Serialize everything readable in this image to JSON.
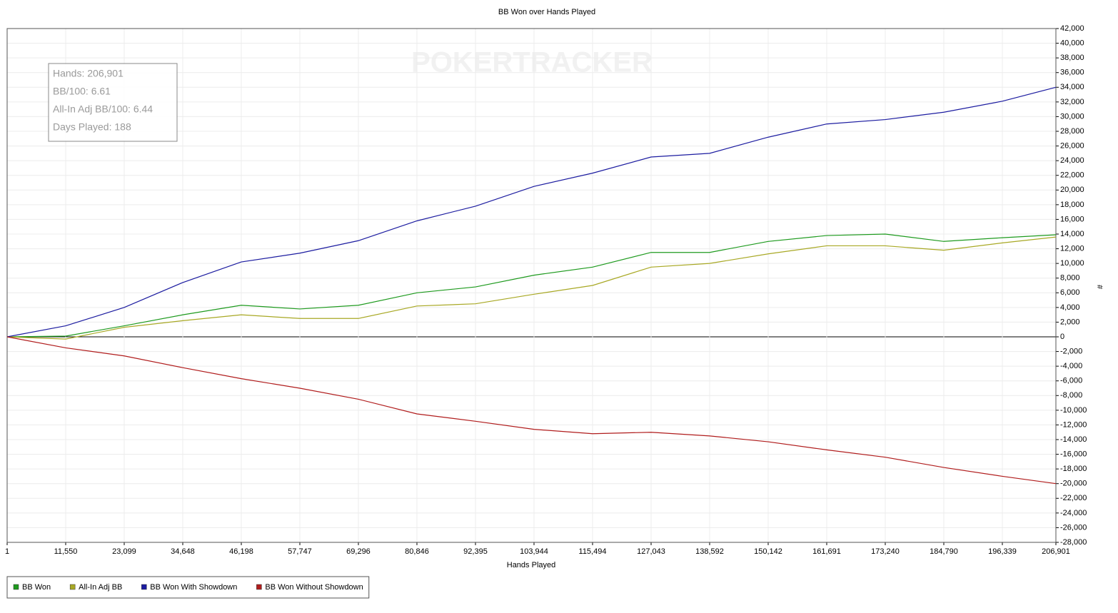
{
  "chart_data": {
    "type": "line",
    "title": "BB Won over Hands Played",
    "x_label": "Hands Played",
    "y_label": "#",
    "watermark": "POKERTRACKER",
    "stats": [
      "Hands: 206,901",
      "BB/100: 6.61",
      "All-In Adj BB/100: 6.44",
      "Days Played: 188"
    ],
    "grid": true,
    "legend": "bottom-left",
    "x": [
      1,
      11550,
      23099,
      34648,
      46198,
      57747,
      69296,
      80846,
      92395,
      103944,
      115494,
      127043,
      138592,
      150142,
      161691,
      173240,
      184790,
      196339,
      206901
    ],
    "xlim": [
      1,
      206901
    ],
    "xticks": [
      1,
      {
        "value": 11550,
        "label": "11,550"
      },
      {
        "value": 23099,
        "label": "23,099"
      },
      {
        "value": 34648,
        "label": "34,648"
      },
      {
        "value": 46198,
        "label": "46,198"
      },
      {
        "value": 57747,
        "label": "57,747"
      },
      {
        "value": 69296,
        "label": "69,296"
      },
      {
        "value": 80846,
        "label": "80,846"
      },
      {
        "value": 92395,
        "label": "92,395"
      },
      {
        "value": 103944,
        "label": "103,944"
      },
      {
        "value": 115494,
        "label": "115,494"
      },
      {
        "value": 127043,
        "label": "127,043"
      },
      {
        "value": 138592,
        "label": "138,592"
      },
      {
        "value": 150142,
        "label": "150,142"
      },
      {
        "value": 161691,
        "label": "161,691"
      },
      {
        "value": 173240,
        "label": "173,240"
      },
      {
        "value": 184790,
        "label": "184,790"
      },
      {
        "value": 196339,
        "label": "196,339"
      },
      {
        "value": 206901,
        "label": "206,901"
      }
    ],
    "ylim": [
      -28000,
      42000
    ],
    "yticks": [
      {
        "value": -28000,
        "label": "-28,000"
      },
      {
        "value": -26000,
        "label": "-26,000"
      },
      {
        "value": -24000,
        "label": "-24,000"
      },
      {
        "value": -22000,
        "label": "-22,000"
      },
      {
        "value": -20000,
        "label": "-20,000"
      },
      {
        "value": -18000,
        "label": "-18,000"
      },
      {
        "value": -16000,
        "label": "-16,000"
      },
      {
        "value": -14000,
        "label": "-14,000"
      },
      {
        "value": -12000,
        "label": "-12,000"
      },
      {
        "value": -10000,
        "label": "-10,000"
      },
      {
        "value": -8000,
        "label": "-8,000"
      },
      {
        "value": -6000,
        "label": "-6,000"
      },
      {
        "value": -4000,
        "label": "-4,000"
      },
      {
        "value": -2000,
        "label": "-2,000"
      },
      0,
      {
        "value": 2000,
        "label": "2,000"
      },
      {
        "value": 4000,
        "label": "4,000"
      },
      {
        "value": 6000,
        "label": "6,000"
      },
      {
        "value": 8000,
        "label": "8,000"
      },
      {
        "value": 10000,
        "label": "10,000"
      },
      {
        "value": 12000,
        "label": "12,000"
      },
      {
        "value": 14000,
        "label": "14,000"
      },
      {
        "value": 16000,
        "label": "16,000"
      },
      {
        "value": 18000,
        "label": "18,000"
      },
      {
        "value": 20000,
        "label": "20,000"
      },
      {
        "value": 22000,
        "label": "22,000"
      },
      {
        "value": 24000,
        "label": "24,000"
      },
      {
        "value": 26000,
        "label": "26,000"
      },
      {
        "value": 28000,
        "label": "28,000"
      },
      {
        "value": 30000,
        "label": "30,000"
      },
      {
        "value": 32000,
        "label": "32,000"
      },
      {
        "value": 34000,
        "label": "34,000"
      },
      {
        "value": 36000,
        "label": "36,000"
      },
      {
        "value": 38000,
        "label": "38,000"
      },
      {
        "value": 40000,
        "label": "40,000"
      },
      {
        "value": 42000,
        "label": "42,000"
      }
    ],
    "series": [
      {
        "name": "BB Won",
        "color": "#1e9a1e",
        "values": [
          0,
          100,
          1500,
          3000,
          4300,
          3800,
          4300,
          6000,
          6800,
          8400,
          9500,
          11500,
          11500,
          13000,
          13800,
          14000,
          13000,
          13500,
          13900
        ]
      },
      {
        "name": "All-In Adj BB",
        "color": "#a8a824",
        "values": [
          0,
          -300,
          1300,
          2200,
          3000,
          2500,
          2500,
          4200,
          4500,
          5800,
          7000,
          9500,
          10000,
          11300,
          12400,
          12400,
          11800,
          12800,
          13600
        ]
      },
      {
        "name": "BB Won With Showdown",
        "color": "#1c1ca0",
        "values": [
          0,
          1500,
          4000,
          7400,
          10200,
          11400,
          13100,
          15800,
          17800,
          20500,
          22300,
          24500,
          25000,
          27200,
          29000,
          29600,
          30600,
          32100,
          34000
        ]
      },
      {
        "name": "BB Won Without Showdown",
        "color": "#b01c1c",
        "values": [
          0,
          -1500,
          -2600,
          -4200,
          -5700,
          -7000,
          -8500,
          -10500,
          -11500,
          -12600,
          -13200,
          -13000,
          -13500,
          -14300,
          -15400,
          -16400,
          -17800,
          -19000,
          -20000
        ]
      }
    ]
  }
}
